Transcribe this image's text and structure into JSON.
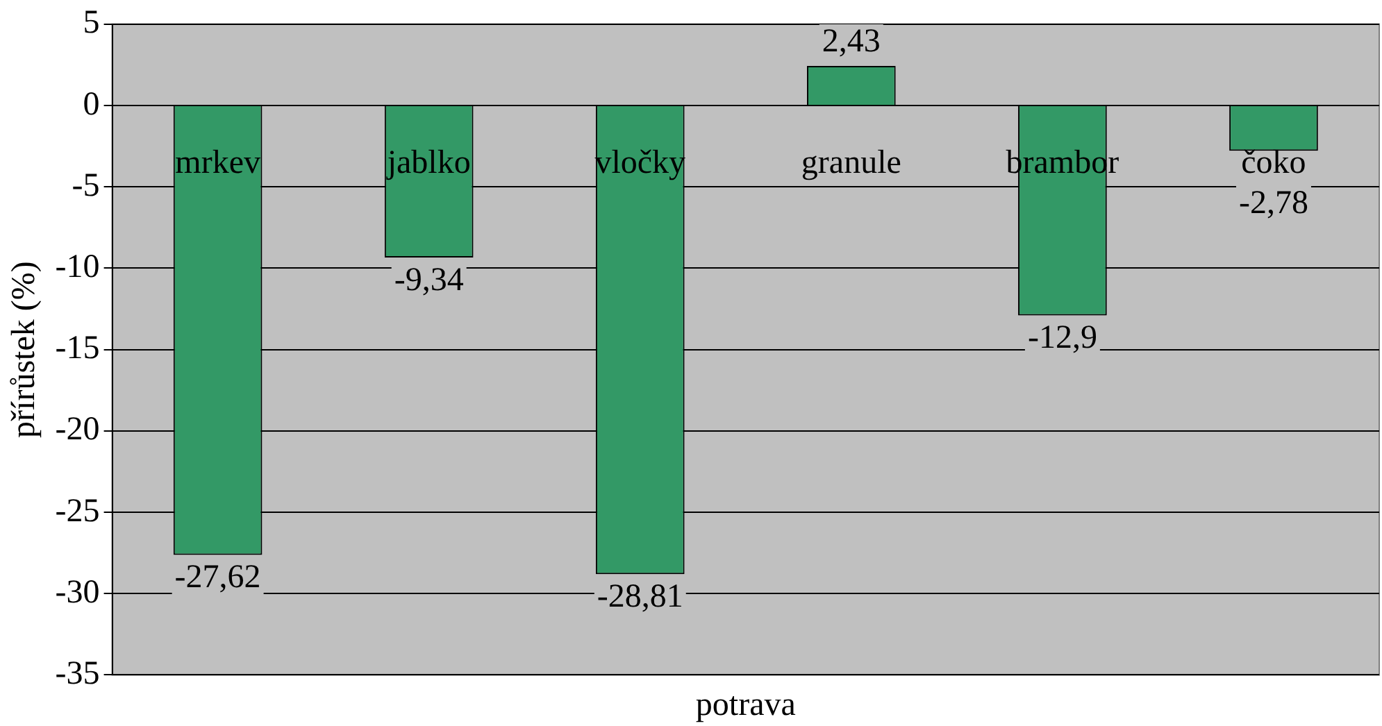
{
  "chart_data": {
    "type": "bar",
    "xlabel": "potrava",
    "ylabel": "přírůstek (%)",
    "categories": [
      "mrkev",
      "jablko",
      "vločky",
      "granule",
      "brambor",
      "čoko"
    ],
    "values": [
      -27.62,
      -9.34,
      -28.81,
      2.43,
      -12.9,
      -2.78
    ],
    "color": "#339966",
    "ylim": [
      -35,
      5
    ],
    "yticks": [
      5,
      0,
      -5,
      -10,
      -15,
      -20,
      -25,
      -30,
      -35
    ],
    "value_labels": [
      "-27,62",
      "-9,34",
      "-28,81",
      "2,43",
      "-12,9",
      "-2,78"
    ],
    "grid": "y",
    "legend": false
  }
}
